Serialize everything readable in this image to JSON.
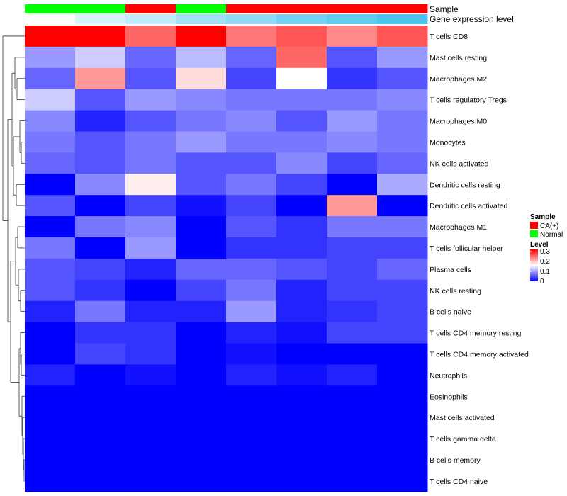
{
  "chart_data": {
    "type": "heatmap",
    "title": "",
    "annotation_tracks": [
      {
        "name": "Sample",
        "values": [
          "Normal",
          "Normal",
          "CA(+)",
          "Normal",
          "CA(+)",
          "CA(+)",
          "CA(+)",
          "CA(+)"
        ]
      },
      {
        "name": "Gene expression level",
        "values": [
          0.0,
          0.22,
          0.35,
          0.52,
          0.62,
          0.78,
          0.88,
          1.0
        ]
      }
    ],
    "rows": [
      "T cells CD8",
      "Mast cells resting",
      "Macrophages M2",
      "T cells regulatory  Tregs",
      "Macrophages M0",
      "Monocytes",
      "NK cells activated",
      "Dendritic cells resting",
      "Dendritic cells activated",
      "Macrophages M1",
      "T cells follicular helper",
      "Plasma cells",
      "NK cells resting",
      "B cells naive",
      "T cells CD4 memory resting",
      "T cells CD4 memory activated",
      "Neutrophils",
      "Eosinophils",
      "Mast cells activated",
      "T cells gamma delta",
      "B cells memory",
      "T cells CD4 naive"
    ],
    "values": [
      [
        0.3,
        0.3,
        0.24,
        0.3,
        0.23,
        0.25,
        0.22,
        0.25
      ],
      [
        0.09,
        0.12,
        0.06,
        0.11,
        0.06,
        0.24,
        0.05,
        0.09
      ],
      [
        0.06,
        0.21,
        0.05,
        0.17,
        0.04,
        0.15,
        0.03,
        0.05
      ],
      [
        0.12,
        0.05,
        0.09,
        0.08,
        0.07,
        0.07,
        0.07,
        0.08
      ],
      [
        0.08,
        0.02,
        0.05,
        0.07,
        0.08,
        0.05,
        0.09,
        0.07
      ],
      [
        0.07,
        0.05,
        0.07,
        0.09,
        0.07,
        0.07,
        0.08,
        0.07
      ],
      [
        0.06,
        0.05,
        0.07,
        0.05,
        0.05,
        0.08,
        0.04,
        0.06
      ],
      [
        0.0,
        0.08,
        0.16,
        0.05,
        0.07,
        0.04,
        0.0,
        0.1
      ],
      [
        0.05,
        0.0,
        0.04,
        0.01,
        0.04,
        0.0,
        0.21,
        0.0
      ],
      [
        0.0,
        0.07,
        0.08,
        0.0,
        0.05,
        0.03,
        0.07,
        0.07
      ],
      [
        0.07,
        0.0,
        0.09,
        0.0,
        0.03,
        0.03,
        0.04,
        0.04
      ],
      [
        0.05,
        0.04,
        0.02,
        0.06,
        0.06,
        0.05,
        0.04,
        0.06
      ],
      [
        0.05,
        0.03,
        0.0,
        0.04,
        0.07,
        0.02,
        0.04,
        0.04
      ],
      [
        0.02,
        0.07,
        0.02,
        0.02,
        0.09,
        0.02,
        0.03,
        0.04
      ],
      [
        0.0,
        0.03,
        0.03,
        0.0,
        0.02,
        0.01,
        0.04,
        0.04
      ],
      [
        0.0,
        0.04,
        0.03,
        0.0,
        0.01,
        0.0,
        0.0,
        0.0
      ],
      [
        0.02,
        0.0,
        0.01,
        0.0,
        0.02,
        0.01,
        0.02,
        0.0
      ],
      [
        0.0,
        0.0,
        0.0,
        0.0,
        0.0,
        0.0,
        0.0,
        0.0
      ],
      [
        0.0,
        0.0,
        0.0,
        0.0,
        0.0,
        0.0,
        0.0,
        0.0
      ],
      [
        0.0,
        0.0,
        0.0,
        0.0,
        0.0,
        0.0,
        0.0,
        0.0
      ],
      [
        0.0,
        0.0,
        0.0,
        0.0,
        0.0,
        0.0,
        0.0,
        0.0
      ],
      [
        0.0,
        0.0,
        0.0,
        0.0,
        0.0,
        0.0,
        0.0,
        0.0
      ]
    ],
    "color_scale": {
      "min": 0,
      "max": 0.3,
      "low": "#0000ff",
      "mid": "#ffffff",
      "high": "#ff0000"
    },
    "legend": {
      "sample_title": "Sample",
      "sample_items": [
        {
          "label": "CA(+)",
          "color": "#ff0000"
        },
        {
          "label": "Normal",
          "color": "#00ff00"
        }
      ],
      "level_title": "Level",
      "level_ticks": [
        "0.3",
        "0.2",
        "0.1",
        "0"
      ],
      "position": "right"
    },
    "row_dendrogram": true
  }
}
